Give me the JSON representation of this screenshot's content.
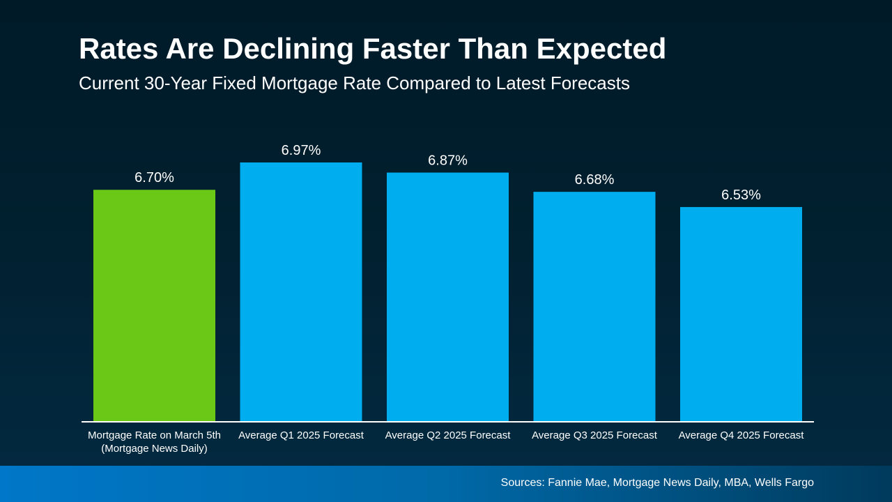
{
  "header": {
    "title": "Rates Are Declining Faster Than Expected",
    "subtitle": "Current 30-Year Fixed Mortgage Rate Compared to Latest Forecasts"
  },
  "footer": {
    "sources": "Sources: Fannie Mae, Mortgage News Daily, MBA, Wells Fargo"
  },
  "colors": {
    "current_rate_bar": "#6cc816",
    "forecast_bar": "#00adef",
    "axis_line": "#ffffff"
  },
  "chart_data": {
    "type": "bar",
    "title": "Rates Are Declining Faster Than Expected",
    "subtitle": "Current 30-Year Fixed Mortgage Rate Compared to Latest Forecasts",
    "categories": [
      [
        "Mortgage Rate on March 5th",
        "(Mortgage News Daily)"
      ],
      [
        "Average Q1 2025 Forecast"
      ],
      [
        "Average Q2 2025 Forecast"
      ],
      [
        "Average Q3 2025 Forecast"
      ],
      [
        "Average Q4 2025 Forecast"
      ]
    ],
    "values": [
      6.7,
      6.97,
      6.87,
      6.68,
      6.53
    ],
    "data_labels": [
      "6.70%",
      "6.97%",
      "6.87%",
      "6.68%",
      "6.53%"
    ],
    "bar_colors": [
      "#6cc816",
      "#00adef",
      "#00adef",
      "#00adef",
      "#00adef"
    ],
    "unit": "%",
    "xlabel": "",
    "ylabel": "",
    "ylim": [
      4.41,
      6.97
    ],
    "grid": false,
    "legend": "none"
  }
}
